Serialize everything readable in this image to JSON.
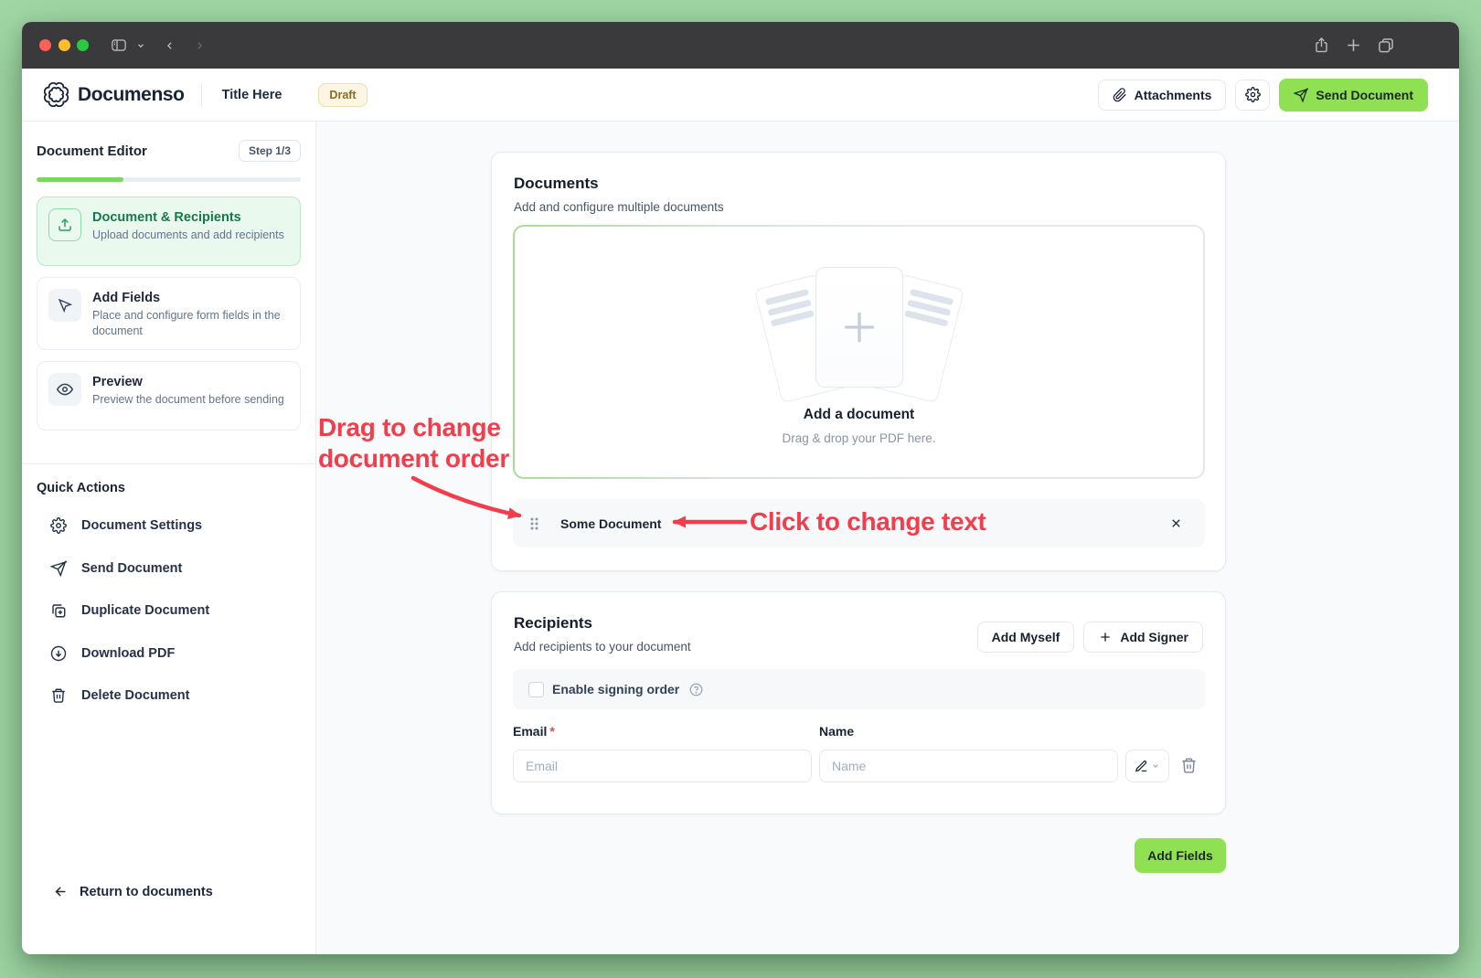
{
  "header": {
    "brand": "Documenso",
    "document_title": "Title Here",
    "status_badge": "Draft",
    "attachments_label": "Attachments",
    "send_label": "Send Document"
  },
  "sidebar": {
    "title": "Document Editor",
    "step_badge": "Step 1/3",
    "progress_percent": 33,
    "steps": [
      {
        "title": "Document & Recipients",
        "desc": "Upload documents and add recipients",
        "icon": "upload-icon",
        "active": true
      },
      {
        "title": "Add Fields",
        "desc": "Place and configure form fields in the document",
        "icon": "cursor-icon",
        "active": false
      },
      {
        "title": "Preview",
        "desc": "Preview the document before sending",
        "icon": "eye-icon",
        "active": false
      }
    ],
    "quick_actions_title": "Quick Actions",
    "quick_actions": [
      {
        "label": "Document Settings",
        "icon": "gear-icon"
      },
      {
        "label": "Send Document",
        "icon": "send-icon"
      },
      {
        "label": "Duplicate Document",
        "icon": "duplicate-icon"
      },
      {
        "label": "Download PDF",
        "icon": "download-icon"
      },
      {
        "label": "Delete Document",
        "icon": "trash-icon"
      }
    ],
    "return_label": "Return to documents"
  },
  "documents_card": {
    "title": "Documents",
    "subtitle": "Add and configure multiple documents",
    "dropzone_title": "Add a document",
    "dropzone_subtitle": "Drag & drop your PDF here.",
    "items": [
      {
        "name": "Some Document"
      }
    ]
  },
  "recipients_card": {
    "title": "Recipients",
    "subtitle": "Add recipients to your document",
    "add_myself_label": "Add Myself",
    "add_signer_label": "Add Signer",
    "signing_order_label": "Enable signing order",
    "email_label": "Email",
    "email_required_mark": "*",
    "name_label": "Name",
    "email_placeholder": "Email",
    "name_placeholder": "Name"
  },
  "footer": {
    "add_fields_label": "Add Fields"
  },
  "annotations": {
    "drag_note": "Drag to change document order",
    "click_note": "Click to change text"
  },
  "colors": {
    "accent_green": "#8fe153",
    "progress_green": "#7dd661",
    "active_step_green": "#17784a",
    "annotation_red": "#f23d4c",
    "draft_amber": "#8a6c1e",
    "desktop_green": "#a1d7a5"
  }
}
